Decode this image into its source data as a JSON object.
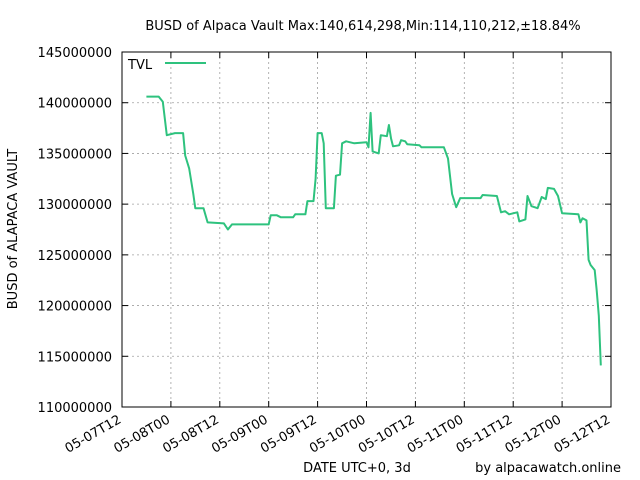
{
  "chart_data": {
    "type": "line",
    "title": "BUSD of Alpaca Vault Max:140,614,298,Min:114,110,212,±18.84%",
    "xlabel": "DATE UTC+0, 3d",
    "ylabel": "BUSD of ALAPACA VAULT",
    "credit": "by alpacawatch.online",
    "ylim": [
      110000000,
      145000000
    ],
    "xlim": [
      "05-07T12",
      "05-12T12"
    ],
    "ytick_labels": [
      "110000000",
      "115000000",
      "120000000",
      "125000000",
      "130000000",
      "135000000",
      "140000000",
      "145000000"
    ],
    "xtick_labels": [
      "05-07T12",
      "05-08T00",
      "05-08T12",
      "05-09T00",
      "05-09T12",
      "05-10T00",
      "05-10T12",
      "05-11T00",
      "05-11T12",
      "05-12T00",
      "05-12T12"
    ],
    "grid": true,
    "legend_position": "top-left",
    "color": "#2ec27e",
    "series": [
      {
        "name": "TVL",
        "points": [
          [
            "05-07T18:00",
            140600000
          ],
          [
            "05-07T21:00",
            140600000
          ],
          [
            "05-07T22:00",
            140100000
          ],
          [
            "05-07T23:00",
            136800000
          ],
          [
            "05-08T01:00",
            137000000
          ],
          [
            "05-08T03:00",
            137000000
          ],
          [
            "05-08T03:30",
            134800000
          ],
          [
            "05-08T04:30",
            133500000
          ],
          [
            "05-08T05:30",
            131000000
          ],
          [
            "05-08T06:00",
            129600000
          ],
          [
            "05-08T08:00",
            129600000
          ],
          [
            "05-08T09:00",
            128200000
          ],
          [
            "05-08T13:00",
            128100000
          ],
          [
            "05-08T14:00",
            127500000
          ],
          [
            "05-08T15:00",
            128000000
          ],
          [
            "05-08T22:00",
            128000000
          ],
          [
            "05-09T00:00",
            128000000
          ],
          [
            "05-09T00:30",
            128900000
          ],
          [
            "05-09T02:00",
            128900000
          ],
          [
            "05-09T03:00",
            128700000
          ],
          [
            "05-09T06:00",
            128700000
          ],
          [
            "05-09T06:30",
            129000000
          ],
          [
            "05-09T09:00",
            129000000
          ],
          [
            "05-09T09:30",
            130300000
          ],
          [
            "05-09T11:00",
            130300000
          ],
          [
            "05-09T11:30",
            132500000
          ],
          [
            "05-09T12:00",
            137000000
          ],
          [
            "05-09T13:00",
            137000000
          ],
          [
            "05-09T13:30",
            136000000
          ],
          [
            "05-09T14:00",
            129600000
          ],
          [
            "05-09T16:00",
            129600000
          ],
          [
            "05-09T16:30",
            132800000
          ],
          [
            "05-09T17:30",
            132900000
          ],
          [
            "05-09T18:00",
            136000000
          ],
          [
            "05-09T19:00",
            136200000
          ],
          [
            "05-09T21:00",
            136000000
          ],
          [
            "05-10T00:00",
            136100000
          ],
          [
            "05-10T00:30",
            135600000
          ],
          [
            "05-10T01:00",
            139000000
          ],
          [
            "05-10T01:30",
            135200000
          ],
          [
            "05-10T03:00",
            135000000
          ],
          [
            "05-10T03:30",
            136800000
          ],
          [
            "05-10T05:00",
            136700000
          ],
          [
            "05-10T05:30",
            137800000
          ],
          [
            "05-10T06:00",
            136500000
          ],
          [
            "05-10T06:30",
            135700000
          ],
          [
            "05-10T08:00",
            135800000
          ],
          [
            "05-10T08:30",
            136300000
          ],
          [
            "05-10T09:30",
            136200000
          ],
          [
            "05-10T10:00",
            135900000
          ],
          [
            "05-10T13:00",
            135800000
          ],
          [
            "05-10T13:30",
            135600000
          ],
          [
            "05-10T19:00",
            135600000
          ],
          [
            "05-10T20:00",
            134500000
          ],
          [
            "05-10T21:00",
            131000000
          ],
          [
            "05-10T22:00",
            129700000
          ],
          [
            "05-10T23:00",
            130600000
          ],
          [
            "05-11T04:00",
            130600000
          ],
          [
            "05-11T04:30",
            130900000
          ],
          [
            "05-11T08:00",
            130800000
          ],
          [
            "05-11T09:00",
            129200000
          ],
          [
            "05-11T10:00",
            129300000
          ],
          [
            "05-11T11:00",
            129000000
          ],
          [
            "05-11T13:00",
            129200000
          ],
          [
            "05-11T13:30",
            128300000
          ],
          [
            "05-11T15:00",
            128500000
          ],
          [
            "05-11T15:30",
            130800000
          ],
          [
            "05-11T16:30",
            129800000
          ],
          [
            "05-11T18:00",
            129600000
          ],
          [
            "05-11T19:00",
            130700000
          ],
          [
            "05-11T20:00",
            130500000
          ],
          [
            "05-11T20:30",
            131600000
          ],
          [
            "05-11T22:00",
            131500000
          ],
          [
            "05-11T23:00",
            130800000
          ],
          [
            "05-12T00:00",
            129100000
          ],
          [
            "05-12T04:00",
            129000000
          ],
          [
            "05-12T04:30",
            128200000
          ],
          [
            "05-12T05:00",
            128600000
          ],
          [
            "05-12T06:00",
            128400000
          ],
          [
            "05-12T06:30",
            124500000
          ],
          [
            "05-12T07:00",
            124000000
          ],
          [
            "05-12T08:00",
            123500000
          ],
          [
            "05-12T08:30",
            121500000
          ],
          [
            "05-12T09:00",
            119000000
          ],
          [
            "05-12T09:30",
            114100000
          ]
        ]
      }
    ]
  }
}
